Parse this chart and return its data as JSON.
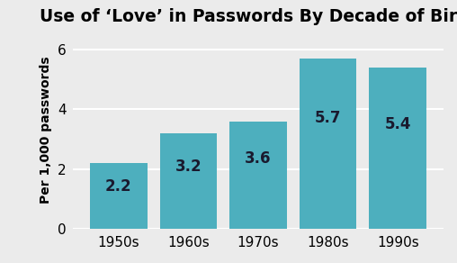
{
  "title": "Use of ‘Love’ in Passwords By Decade of Birth",
  "categories": [
    "1950s",
    "1960s",
    "1970s",
    "1980s",
    "1990s"
  ],
  "values": [
    2.2,
    3.2,
    3.6,
    5.7,
    5.4
  ],
  "bar_color": "#4DAFBE",
  "bar_labels": [
    "2.2",
    "3.2",
    "3.6",
    "5.7",
    "5.4"
  ],
  "ylabel": "Per 1,000 passwords",
  "ylim": [
    0,
    6.6
  ],
  "yticks": [
    0,
    2,
    4,
    6
  ],
  "background_color": "#ebebeb",
  "title_fontsize": 13.5,
  "label_fontsize": 10,
  "tick_fontsize": 11,
  "bar_label_fontsize": 12
}
